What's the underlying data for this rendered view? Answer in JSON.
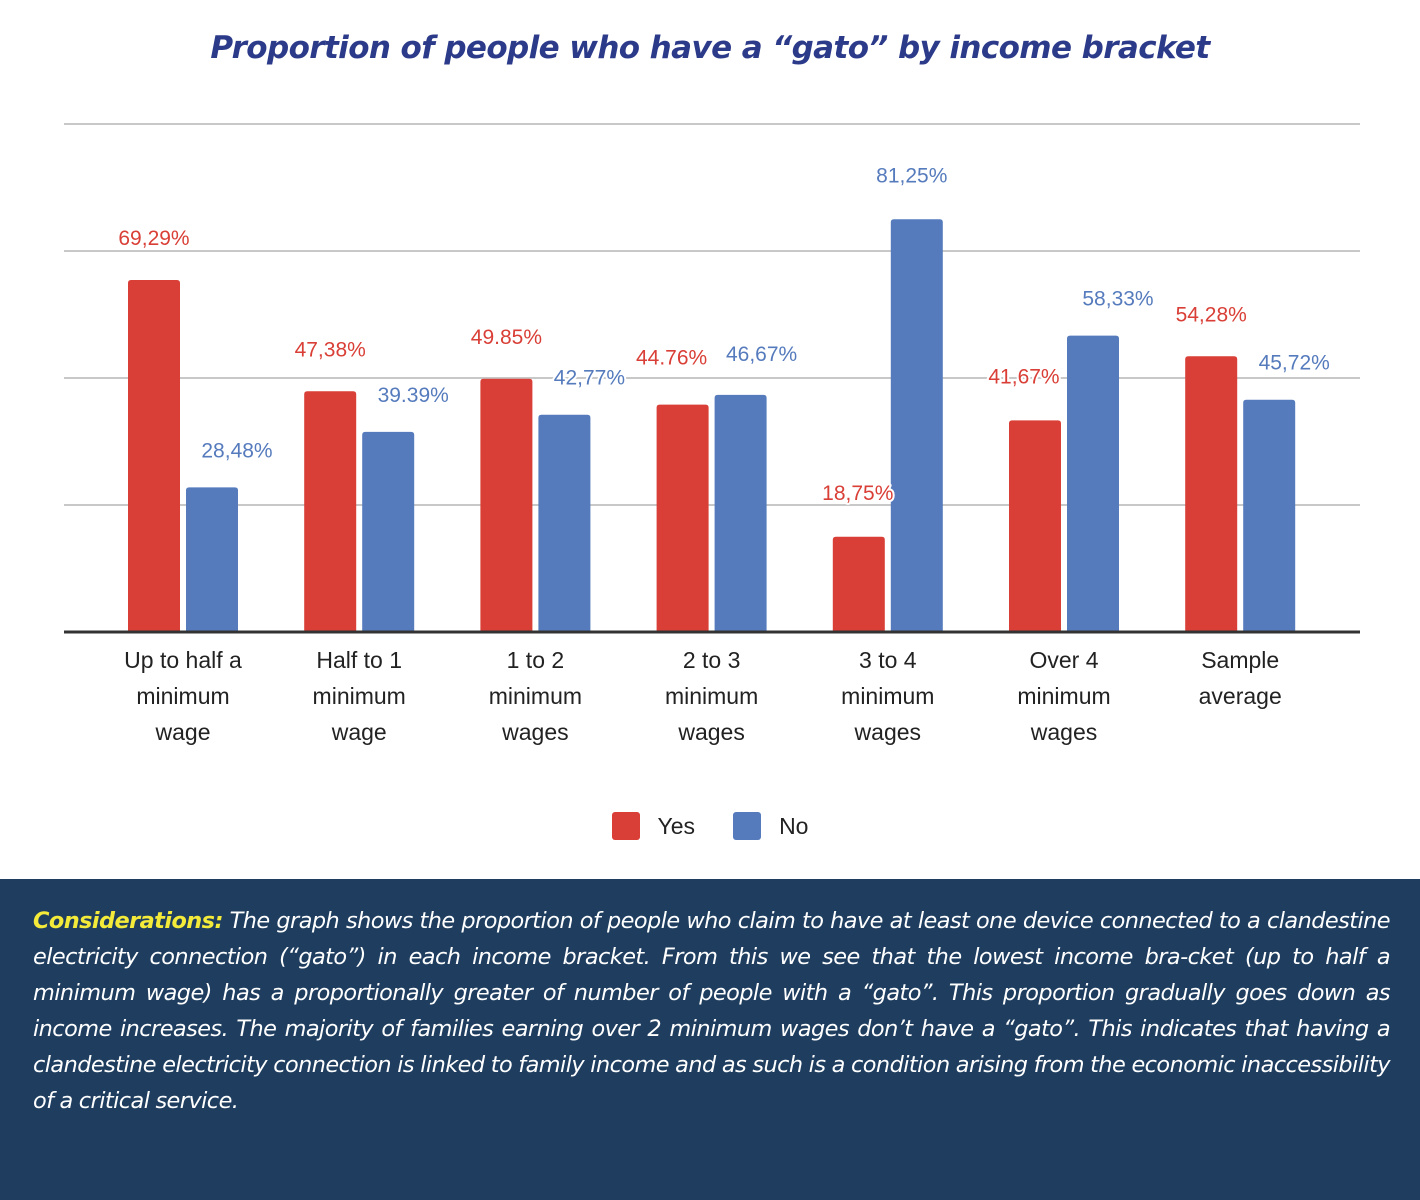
{
  "title": "Proportion of people who have a “gato” by income bracket",
  "colors": {
    "yes": "#d93f36",
    "no": "#557bbd",
    "title": "#2c3a8a",
    "panel_bg": "#1e3d5f",
    "panel_lead": "#f4ea3a",
    "gridline": "#c8c8c8",
    "axis": "#333333"
  },
  "legend": [
    {
      "name": "Yes",
      "color": "#d93f36"
    },
    {
      "name": "No",
      "color": "#557bbd"
    }
  ],
  "chart_data": {
    "type": "bar",
    "title": "Proportion of people who have a “gato” by income bracket",
    "xlabel": "",
    "ylabel": "",
    "ylim": [
      0,
      100
    ],
    "grid": true,
    "gridline_step": 25,
    "legend_position": "bottom",
    "categories": [
      [
        "Up to half a",
        "minimum",
        "wage"
      ],
      [
        "Half to 1",
        "minimum",
        "wage"
      ],
      [
        "1 to 2",
        "minimum",
        "wages"
      ],
      [
        "2 to 3",
        "minimum",
        "wages"
      ],
      [
        "3 to 4",
        "minimum",
        "wages"
      ],
      [
        "Over 4",
        "minimum",
        "wages"
      ],
      [
        "Sample",
        "average"
      ]
    ],
    "series": [
      {
        "name": "Yes",
        "color": "#d93f36",
        "values": [
          69.29,
          47.38,
          49.85,
          44.76,
          18.75,
          41.67,
          54.28
        ],
        "labels": [
          "69,29%",
          "47,38%",
          "49.85%",
          "44.76%",
          "18,75%",
          "41,67%",
          "54,28%"
        ]
      },
      {
        "name": "No",
        "color": "#557bbd",
        "values": [
          28.48,
          39.39,
          42.77,
          46.67,
          81.25,
          58.33,
          45.72
        ],
        "labels": [
          "28,48%",
          "39.39%",
          "42,77%",
          "46,67%",
          "81,25%",
          "58,33%",
          "45,72%"
        ]
      }
    ]
  },
  "considerations": {
    "lead": "Considerations:",
    "text": " The graph shows the proportion of people who claim to have at least one device connected to a clandestine electricity connection (“gato”) in each income bracket. From this we see that the lowest income bra-cket (up to half a minimum wage) has a proportionally greater of number of people with a “gato”. This proportion gradually goes down as income increases. The majority of families earning over 2 minimum wages don’t have a “gato”. This indicates that having a clandestine electricity connection is linked to family income and as such is a condition arising from the economic inaccessibility of a critical service."
  }
}
